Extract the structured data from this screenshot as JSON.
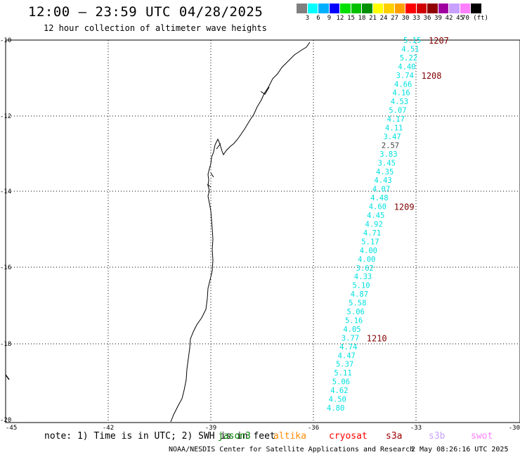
{
  "header": {
    "title": "12:00 – 23:59 UTC 04/28/2025",
    "subtitle": "12 hour collection of altimeter wave heights"
  },
  "colorbar": {
    "colors": [
      "#808080",
      "#00ffff",
      "#00b0ff",
      "#0000ff",
      "#00e000",
      "#00c000",
      "#009000",
      "#ffff00",
      "#ffd000",
      "#ffa000",
      "#ff0000",
      "#d00000",
      "#900000",
      "#a000a0",
      "#c8a0ff",
      "#ff80ff",
      "#000000"
    ],
    "labels": [
      "3",
      "6",
      "9",
      "12",
      "15",
      "18",
      "21",
      "24",
      "27",
      "30",
      "33",
      "36",
      "39",
      "42",
      "45",
      "70 (ft)"
    ]
  },
  "map": {
    "x_ticks": [
      "-45",
      "-42",
      "-39",
      "-36",
      "-33",
      "-30"
    ],
    "y_ticks": [
      "-10",
      "-12",
      "-14",
      "-16",
      "-18",
      "-20"
    ],
    "track_color": "#00e0e0",
    "label_color": "#800000"
  },
  "track": {
    "values": [
      "5.15",
      "4.51",
      "5.22",
      "4.40",
      "3.74",
      "4.66",
      "4.16",
      "4.53",
      "5.07",
      "4.17",
      "4.11",
      "3.47",
      "2.57",
      "3.83",
      "3.45",
      "4.35",
      "4.43",
      "4.07",
      "4.48",
      "4.60",
      "4.45",
      "4.92",
      "4.71",
      "5.17",
      "4.00",
      "4.00",
      "3.62",
      "4.33",
      "5.10",
      "4.87",
      "5.58",
      "5.06",
      "5.16",
      "4.05",
      "3.77",
      "4.74",
      "4.47",
      "5.37",
      "5.11",
      "5.06",
      "4.62",
      "4.50",
      "4.80"
    ],
    "colors": [
      "#00e0e0",
      "#00e0e0",
      "#00e0e0",
      "#00e0e0",
      "#00e0e0",
      "#00e0e0",
      "#00e0e0",
      "#00e0e0",
      "#00e0e0",
      "#00e0e0",
      "#00e0e0",
      "#00e0e0",
      "#404040",
      "#00e0e0",
      "#00e0e0",
      "#00e0e0",
      "#00e0e0",
      "#00e0e0",
      "#00e0e0",
      "#00e0e0",
      "#00e0e0",
      "#00e0e0",
      "#00e0e0",
      "#00e0e0",
      "#00e0e0",
      "#00e0e0",
      "#00e0e0",
      "#00e0e0",
      "#00e0e0",
      "#00e0e0",
      "#00e0e0",
      "#00e0e0",
      "#00e0e0",
      "#00e0e0",
      "#00e0e0",
      "#00e0e0",
      "#00e0e0",
      "#00e0e0",
      "#00e0e0",
      "#00e0e0",
      "#00e0e0",
      "#00e0e0",
      "#00e0e0"
    ],
    "time_markers": [
      "1207",
      "1208",
      "1209",
      "1210"
    ]
  },
  "footer": {
    "note": "note: 1) Time is in UTC; 2) SWH is in feet",
    "satellites": [
      {
        "name": "jason3",
        "color": "#008000"
      },
      {
        "name": "altika",
        "color": "#ff8c00"
      },
      {
        "name": "cryosat",
        "color": "#ff0000"
      },
      {
        "name": "s3a",
        "color": "#a00000"
      },
      {
        "name": "s3b",
        "color": "#c8a0ff"
      },
      {
        "name": "swot",
        "color": "#ff80ff"
      }
    ],
    "credit": "NOAA/NESDIS Center for Satellite Applications and Research",
    "timestamp": "2 May 08:26:16 UTC 2025"
  }
}
